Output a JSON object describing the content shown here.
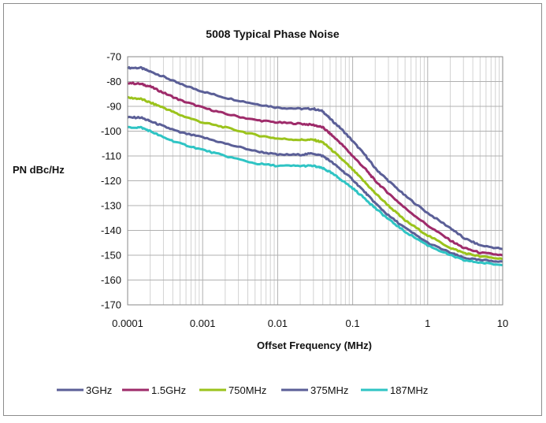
{
  "chart_data": {
    "type": "line",
    "title": "5008 Typical Phase Noise",
    "xlabel": "Offset Frequency (MHz)",
    "ylabel": "PN dBc/Hz",
    "xscale": "log",
    "xlim": [
      0.0001,
      10
    ],
    "ylim": [
      -170,
      -70
    ],
    "x_ticks": [
      "0.0001",
      "0.001",
      "0.01",
      "0.1",
      "1",
      "10"
    ],
    "y_ticks": [
      "-70",
      "-80",
      "-90",
      "-100",
      "-110",
      "-120",
      "-130",
      "-140",
      "-150",
      "-160",
      "-170"
    ],
    "grid": true,
    "legend_position": "bottom",
    "series": [
      {
        "name": "3GHz",
        "color": "#5B5F97",
        "points": [
          [
            0.0001,
            -74.5
          ],
          [
            0.00015,
            -74.5
          ],
          [
            0.0002,
            -76
          ],
          [
            0.0003,
            -78
          ],
          [
            0.0005,
            -81
          ],
          [
            0.001,
            -84
          ],
          [
            0.002,
            -86.5
          ],
          [
            0.005,
            -89
          ],
          [
            0.01,
            -90.5
          ],
          [
            0.02,
            -91
          ],
          [
            0.03,
            -91
          ],
          [
            0.04,
            -92
          ],
          [
            0.05,
            -95
          ],
          [
            0.07,
            -99
          ],
          [
            0.1,
            -104
          ],
          [
            0.15,
            -110
          ],
          [
            0.2,
            -115
          ],
          [
            0.3,
            -120
          ],
          [
            0.5,
            -126
          ],
          [
            1,
            -133
          ],
          [
            2,
            -139
          ],
          [
            3,
            -143
          ],
          [
            5,
            -146
          ],
          [
            10,
            -147.5
          ]
        ]
      },
      {
        "name": "1.5GHz",
        "color": "#9E2B6A",
        "points": [
          [
            0.0001,
            -80.5
          ],
          [
            0.00015,
            -81
          ],
          [
            0.0002,
            -82
          ],
          [
            0.0003,
            -84.5
          ],
          [
            0.0005,
            -87.5
          ],
          [
            0.001,
            -90.5
          ],
          [
            0.002,
            -93
          ],
          [
            0.005,
            -95.5
          ],
          [
            0.01,
            -96.5
          ],
          [
            0.02,
            -97
          ],
          [
            0.03,
            -97.5
          ],
          [
            0.04,
            -98.5
          ],
          [
            0.05,
            -101
          ],
          [
            0.07,
            -105
          ],
          [
            0.1,
            -110
          ],
          [
            0.15,
            -115.5
          ],
          [
            0.2,
            -120
          ],
          [
            0.3,
            -125
          ],
          [
            0.5,
            -131
          ],
          [
            1,
            -138
          ],
          [
            2,
            -144
          ],
          [
            3,
            -147
          ],
          [
            5,
            -149
          ],
          [
            10,
            -150
          ]
        ]
      },
      {
        "name": "750MHz",
        "color": "#9BC31C",
        "points": [
          [
            0.0001,
            -86.5
          ],
          [
            0.00015,
            -87
          ],
          [
            0.0002,
            -88.5
          ],
          [
            0.0003,
            -90.5
          ],
          [
            0.0005,
            -93.5
          ],
          [
            0.001,
            -96.5
          ],
          [
            0.002,
            -98.5
          ],
          [
            0.005,
            -101.5
          ],
          [
            0.01,
            -103
          ],
          [
            0.02,
            -103.5
          ],
          [
            0.03,
            -103.5
          ],
          [
            0.04,
            -104.5
          ],
          [
            0.05,
            -107
          ],
          [
            0.07,
            -111
          ],
          [
            0.1,
            -115.5
          ],
          [
            0.15,
            -121
          ],
          [
            0.2,
            -125
          ],
          [
            0.3,
            -130
          ],
          [
            0.5,
            -136
          ],
          [
            1,
            -142
          ],
          [
            2,
            -147
          ],
          [
            3,
            -149
          ],
          [
            5,
            -150.5
          ],
          [
            10,
            -151.5
          ]
        ]
      },
      {
        "name": "375MHz",
        "color": "#5B5F97",
        "points": [
          [
            0.0001,
            -94.5
          ],
          [
            0.00015,
            -94.5
          ],
          [
            0.0002,
            -96
          ],
          [
            0.0003,
            -98
          ],
          [
            0.0005,
            -100.5
          ],
          [
            0.001,
            -102.5
          ],
          [
            0.002,
            -105
          ],
          [
            0.005,
            -108
          ],
          [
            0.01,
            -109.5
          ],
          [
            0.02,
            -109.5
          ],
          [
            0.03,
            -109
          ],
          [
            0.04,
            -110
          ],
          [
            0.05,
            -112
          ],
          [
            0.07,
            -115.5
          ],
          [
            0.1,
            -119.5
          ],
          [
            0.15,
            -125
          ],
          [
            0.2,
            -129
          ],
          [
            0.3,
            -134
          ],
          [
            0.5,
            -139
          ],
          [
            1,
            -145
          ],
          [
            2,
            -149
          ],
          [
            3,
            -151
          ],
          [
            5,
            -152
          ],
          [
            10,
            -152.5
          ]
        ]
      },
      {
        "name": "187MHz",
        "color": "#2FC4C4",
        "points": [
          [
            0.0001,
            -98.5
          ],
          [
            0.00015,
            -98.5
          ],
          [
            0.0002,
            -100
          ],
          [
            0.0003,
            -102.5
          ],
          [
            0.0005,
            -105
          ],
          [
            0.001,
            -107.5
          ],
          [
            0.002,
            -110
          ],
          [
            0.005,
            -113
          ],
          [
            0.01,
            -114
          ],
          [
            0.02,
            -114
          ],
          [
            0.03,
            -114
          ],
          [
            0.04,
            -115
          ],
          [
            0.05,
            -116.5
          ],
          [
            0.07,
            -119.5
          ],
          [
            0.1,
            -123
          ],
          [
            0.15,
            -127.5
          ],
          [
            0.2,
            -131
          ],
          [
            0.3,
            -135.5
          ],
          [
            0.5,
            -140.5
          ],
          [
            1,
            -146
          ],
          [
            2,
            -150
          ],
          [
            3,
            -152
          ],
          [
            5,
            -153
          ],
          [
            10,
            -154
          ]
        ]
      }
    ]
  }
}
